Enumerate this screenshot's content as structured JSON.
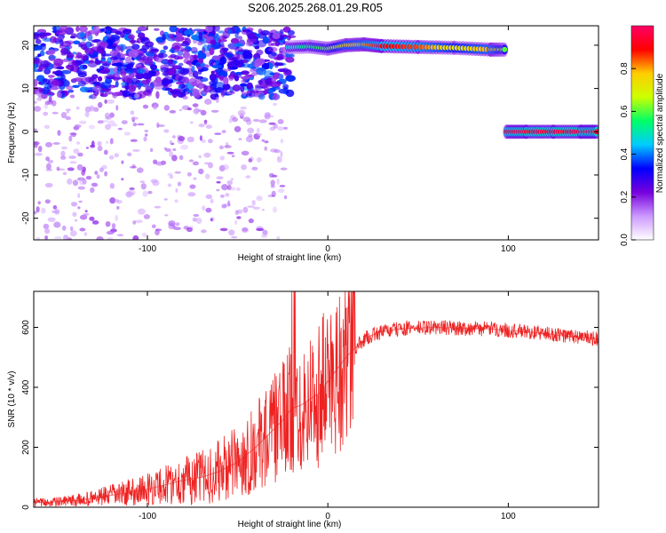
{
  "title": "S206.2025.268.01.29.R05",
  "chart_data": [
    {
      "type": "heatmap",
      "xlabel": "Height of straight line (km)",
      "ylabel": "Frequency (Hz)",
      "xlim": [
        -163,
        150
      ],
      "ylim": [
        -25,
        24.5
      ],
      "xticks": [
        -100,
        0,
        100
      ],
      "yticks": [
        -20,
        -10,
        0,
        10,
        20
      ],
      "grid": false,
      "colorbar": {
        "label": "Normalized spectral amplitude",
        "range": [
          0,
          1
        ],
        "ticks": [
          "0.0",
          "0.2",
          "0.4",
          "0.6",
          "0.8"
        ],
        "colormap": [
          "#ffffff",
          "#cc99ff",
          "#7700dd",
          "#0000ff",
          "#00ccff",
          "#00ff66",
          "#ccff00",
          "#ffcc00",
          "#ff0000",
          "#ff0066"
        ]
      },
      "ridges": [
        {
          "x": [
            -22,
            -10,
            0,
            10,
            20,
            30,
            50,
            70,
            90,
            98
          ],
          "y": [
            19.5,
            19.7,
            19.2,
            20.0,
            20.2,
            19.8,
            19.6,
            19.4,
            19.0,
            19.0
          ],
          "amplitude": [
            0.45,
            0.55,
            0.6,
            0.75,
            0.8,
            0.9,
            0.85,
            0.7,
            0.8,
            0.6
          ]
        },
        {
          "x": [
            99,
            110,
            125,
            140,
            149
          ],
          "y": [
            0,
            0,
            0,
            0,
            0
          ],
          "amplitude": [
            0.9,
            0.95,
            0.95,
            0.95,
            0.95
          ]
        }
      ],
      "noise_region": {
        "x_range": [
          -163,
          -20
        ],
        "y_range": [
          8,
          24
        ],
        "amplitude": [
          0.15,
          0.4
        ]
      }
    },
    {
      "type": "line",
      "xlabel": "Height of straight line (km)",
      "ylabel": "SNR (10 * v/v)",
      "xlim": [
        -163,
        150
      ],
      "ylim": [
        0,
        720
      ],
      "xticks": [
        -100,
        0,
        100
      ],
      "yticks": [
        0,
        200,
        400,
        600
      ],
      "grid": false,
      "color": "#ee2222",
      "series": [
        {
          "x": [
            -163,
            -150,
            -140,
            -130,
            -120,
            -110,
            -100,
            -90,
            -80,
            -70,
            -60,
            -50,
            -40,
            -35,
            -30,
            -25,
            -20,
            -15,
            -10,
            -5,
            0,
            5,
            10,
            15,
            20,
            25,
            30,
            40,
            50,
            60,
            70,
            80,
            90,
            100,
            110,
            120,
            130,
            140,
            150
          ],
          "y": [
            15,
            18,
            22,
            30,
            40,
            50,
            60,
            75,
            90,
            100,
            120,
            150,
            200,
            230,
            260,
            290,
            330,
            340,
            360,
            380,
            420,
            460,
            500,
            530,
            560,
            575,
            585,
            595,
            598,
            600,
            598,
            596,
            595,
            590,
            585,
            580,
            572,
            568,
            560
          ]
        }
      ]
    }
  ]
}
